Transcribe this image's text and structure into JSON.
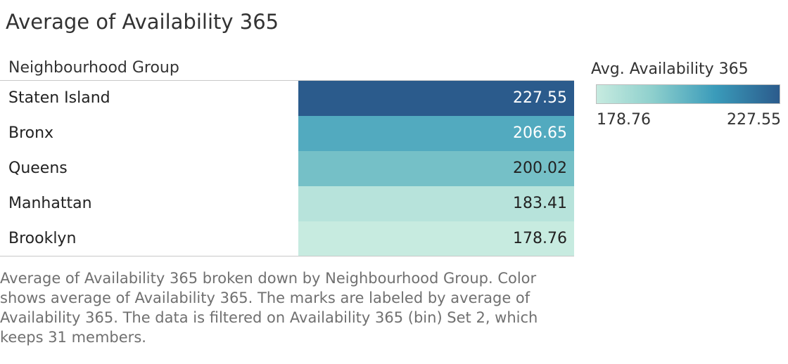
{
  "title": "Average of Availability 365",
  "chart_data": {
    "type": "table",
    "title": "Average of Availability 365",
    "row_header": "Neighbourhood Group",
    "categories": [
      "Staten Island",
      "Bronx",
      "Queens",
      "Manhattan",
      "Brooklyn"
    ],
    "values": [
      227.55,
      206.65,
      200.02,
      183.41,
      178.76
    ],
    "value_labels": [
      "227.55",
      "206.65",
      "200.02",
      "183.41",
      "178.76"
    ],
    "color_encoding": "Avg. Availability 365",
    "legend": {
      "title": "Avg. Availability 365",
      "min_label": "178.76",
      "max_label": "227.55",
      "min": 178.76,
      "max": 227.55,
      "colors": [
        "#c7ebe0",
        "#8fd0cd",
        "#3a9bba",
        "#2b5b8c"
      ],
      "placement": "top-right"
    }
  },
  "caption": "Average of Availability 365 broken down by Neighbourhood Group. Color shows average of Availability 365.  The marks are labeled by average of Availability 365. The data is filtered on Availability 365 (bin) Set 2, which keeps 31 members."
}
